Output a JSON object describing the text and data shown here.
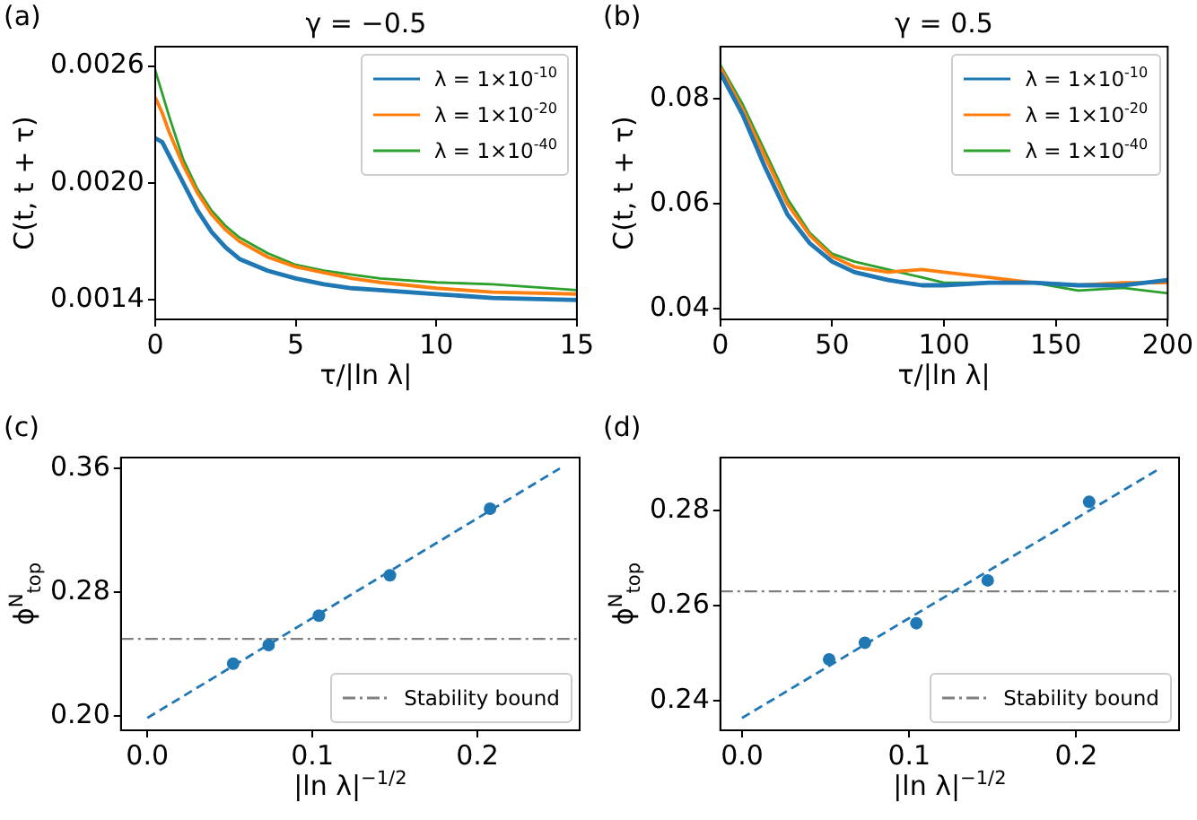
{
  "chart_data": [
    {
      "type": "line",
      "title": "γ = −0.5",
      "xlabel": "τ/|ln λ|",
      "ylabel": "C(t, t + τ)",
      "annotations": [
        "(a)"
      ],
      "legend": "top right",
      "grid": false,
      "marker": "none",
      "xlim": [
        0,
        15
      ],
      "xticks": [
        0,
        5,
        10,
        15
      ],
      "ylim": [
        0.0013,
        0.0027
      ],
      "yticks": [
        {
          "value": 0.0014,
          "label": "0.0014"
        },
        {
          "value": 0.002,
          "label": "0.0020"
        },
        {
          "value": 0.0026,
          "label": "0.0026"
        }
      ],
      "x": [
        0,
        0.25,
        0.5,
        1,
        1.5,
        2,
        2.5,
        3,
        4,
        5,
        6,
        7,
        8,
        10,
        12,
        15
      ],
      "series": [
        {
          "name": "λ = 1×10$^{-10}$",
          "color": "#1f77b4",
          "values": [
            0.00223,
            0.00221,
            0.00214,
            0.002,
            0.00186,
            0.00175,
            0.00167,
            0.00161,
            0.00155,
            0.00151,
            0.00148,
            0.00146,
            0.00145,
            0.00143,
            0.00141,
            0.0014
          ]
        },
        {
          "name": "λ = 1×10$^{-20}$",
          "color": "#ff7f0e",
          "values": [
            0.00244,
            0.00236,
            0.00226,
            0.00209,
            0.00195,
            0.00184,
            0.00176,
            0.0017,
            0.00162,
            0.00157,
            0.00154,
            0.00151,
            0.00149,
            0.00146,
            0.00144,
            0.00143
          ]
        },
        {
          "name": "λ = 1×10$^{-40}$",
          "color": "#2ca02c",
          "values": [
            0.00258,
            0.00246,
            0.00234,
            0.00212,
            0.00197,
            0.00186,
            0.00178,
            0.00172,
            0.00164,
            0.00158,
            0.00155,
            0.00153,
            0.00151,
            0.00149,
            0.00148,
            0.00145
          ]
        }
      ]
    },
    {
      "type": "line",
      "title": "γ = 0.5",
      "xlabel": "τ/|ln λ|",
      "ylabel": "C(t, t + τ)",
      "annotations": [
        "(b)"
      ],
      "legend": "top right",
      "grid": false,
      "marker": "none",
      "xlim": [
        0,
        200
      ],
      "xticks": [
        0,
        50,
        100,
        150,
        200
      ],
      "ylim": [
        0.038,
        0.09
      ],
      "yticks": [
        0.04,
        0.06,
        0.08
      ],
      "x": [
        0,
        10,
        20,
        30,
        40,
        50,
        60,
        75,
        90,
        100,
        120,
        140,
        160,
        180,
        200
      ],
      "series": [
        {
          "name": "λ = 1×10$^{-10}$",
          "color": "#1f77b4",
          "values": [
            0.085,
            0.077,
            0.067,
            0.058,
            0.0525,
            0.049,
            0.047,
            0.0455,
            0.0445,
            0.0445,
            0.045,
            0.045,
            0.0445,
            0.0445,
            0.0455
          ]
        },
        {
          "name": "λ = 1×10$^{-20}$",
          "color": "#ff7f0e",
          "values": [
            0.086,
            0.078,
            0.069,
            0.06,
            0.054,
            0.05,
            0.048,
            0.047,
            0.0475,
            0.047,
            0.046,
            0.045,
            0.0445,
            0.045,
            0.045
          ]
        },
        {
          "name": "λ = 1×10$^{-40}$",
          "color": "#2ca02c",
          "values": [
            0.0865,
            0.079,
            0.07,
            0.061,
            0.0545,
            0.0505,
            0.049,
            0.0475,
            0.046,
            0.045,
            0.045,
            0.045,
            0.0435,
            0.044,
            0.043
          ]
        }
      ]
    },
    {
      "type": "scatter",
      "xlabel": "|ln λ|$^{−1/2}$",
      "ylabel": "ϕ$^{N}$$_{top}$",
      "annotations": [
        "(c)"
      ],
      "legend": "bottom right",
      "grid": false,
      "marker": "circle",
      "xlim": [
        -0.016,
        0.262
      ],
      "xticks": [
        {
          "value": 0,
          "label": "0.0"
        },
        0.1,
        0.2
      ],
      "ylim": [
        0.191,
        0.367
      ],
      "yticks": [
        {
          "value": 0.2,
          "label": "0.20"
        },
        0.28,
        0.36
      ],
      "ref_lines": [
        {
          "axis": "y",
          "value": 0.25,
          "label": "Stability bound",
          "color": "#808080",
          "line_style": "dashdot"
        }
      ],
      "series": [
        {
          "color": "#1f77b4",
          "x": [
            0.052,
            0.0735,
            0.104,
            0.147,
            0.2077
          ],
          "values": [
            0.234,
            0.246,
            0.265,
            0.291,
            0.334
          ]
        },
        {
          "type": "line",
          "marker": "none",
          "line_style": "dashed",
          "color": "#1f77b4",
          "x": [
            0,
            0.25
          ],
          "values": [
            0.199,
            0.36
          ]
        }
      ]
    },
    {
      "type": "scatter",
      "xlabel": "|ln λ|$^{−1/2}$",
      "ylabel": "ϕ$^{N}$$_{top}$",
      "annotations": [
        "(d)"
      ],
      "legend": "bottom right",
      "grid": false,
      "marker": "circle",
      "xlim": [
        -0.013,
        0.2615
      ],
      "xticks": [
        {
          "value": 0,
          "label": "0.0"
        },
        0.1,
        0.2
      ],
      "ylim": [
        0.2338,
        0.2911
      ],
      "yticks": [
        0.24,
        0.26,
        0.28
      ],
      "ref_lines": [
        {
          "axis": "y",
          "value": 0.263,
          "label": "Stability bound",
          "color": "#808080",
          "line_style": "dashdot"
        }
      ],
      "series": [
        {
          "color": "#1f77b4",
          "x": [
            0.0521,
            0.0735,
            0.1043,
            0.147,
            0.2077
          ],
          "values": [
            0.2487,
            0.2522,
            0.2563,
            0.2653,
            0.2818
          ]
        },
        {
          "type": "line",
          "marker": "none",
          "line_style": "dashed",
          "color": "#1f77b4",
          "x": [
            0,
            0.25
          ],
          "values": [
            0.2364,
            0.2888
          ]
        }
      ]
    }
  ]
}
